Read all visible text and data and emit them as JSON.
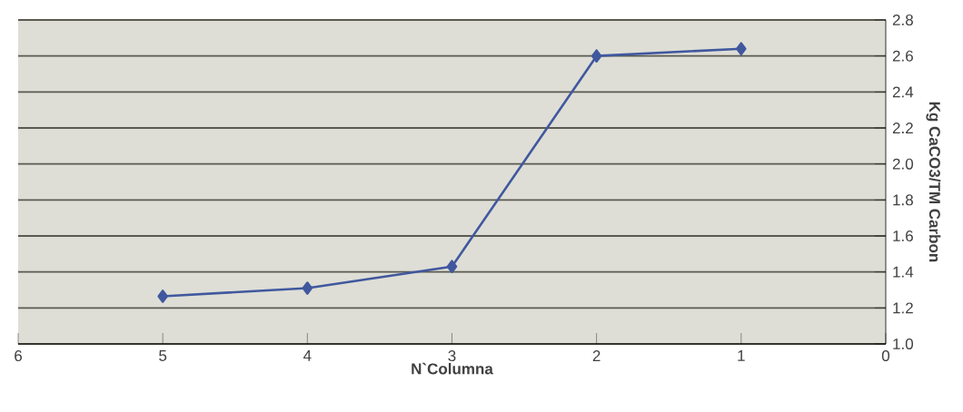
{
  "chart_data": {
    "type": "line",
    "xlabel": "N`Columna",
    "ylabel": "Kg CaCO3/TM Carbon",
    "x": [
      5,
      4,
      3,
      2,
      1
    ],
    "series": [
      {
        "color": "#40589e",
        "values": [
          1.265,
          1.31,
          1.43,
          2.6,
          2.64
        ]
      }
    ],
    "xlim": [
      6,
      0
    ],
    "xticks": [
      6,
      5,
      4,
      3,
      2,
      1,
      0
    ],
    "ylim": [
      1.0,
      2.8
    ],
    "yticks": [
      {
        "value": 1.0,
        "label": "1.0"
      },
      1.2,
      1.4,
      1.6,
      1.8,
      {
        "value": 2.0,
        "label": "2.0"
      },
      2.2,
      2.4,
      2.6,
      2.8
    ],
    "grid": "y",
    "marker": "diamond",
    "line_style": "solid"
  }
}
